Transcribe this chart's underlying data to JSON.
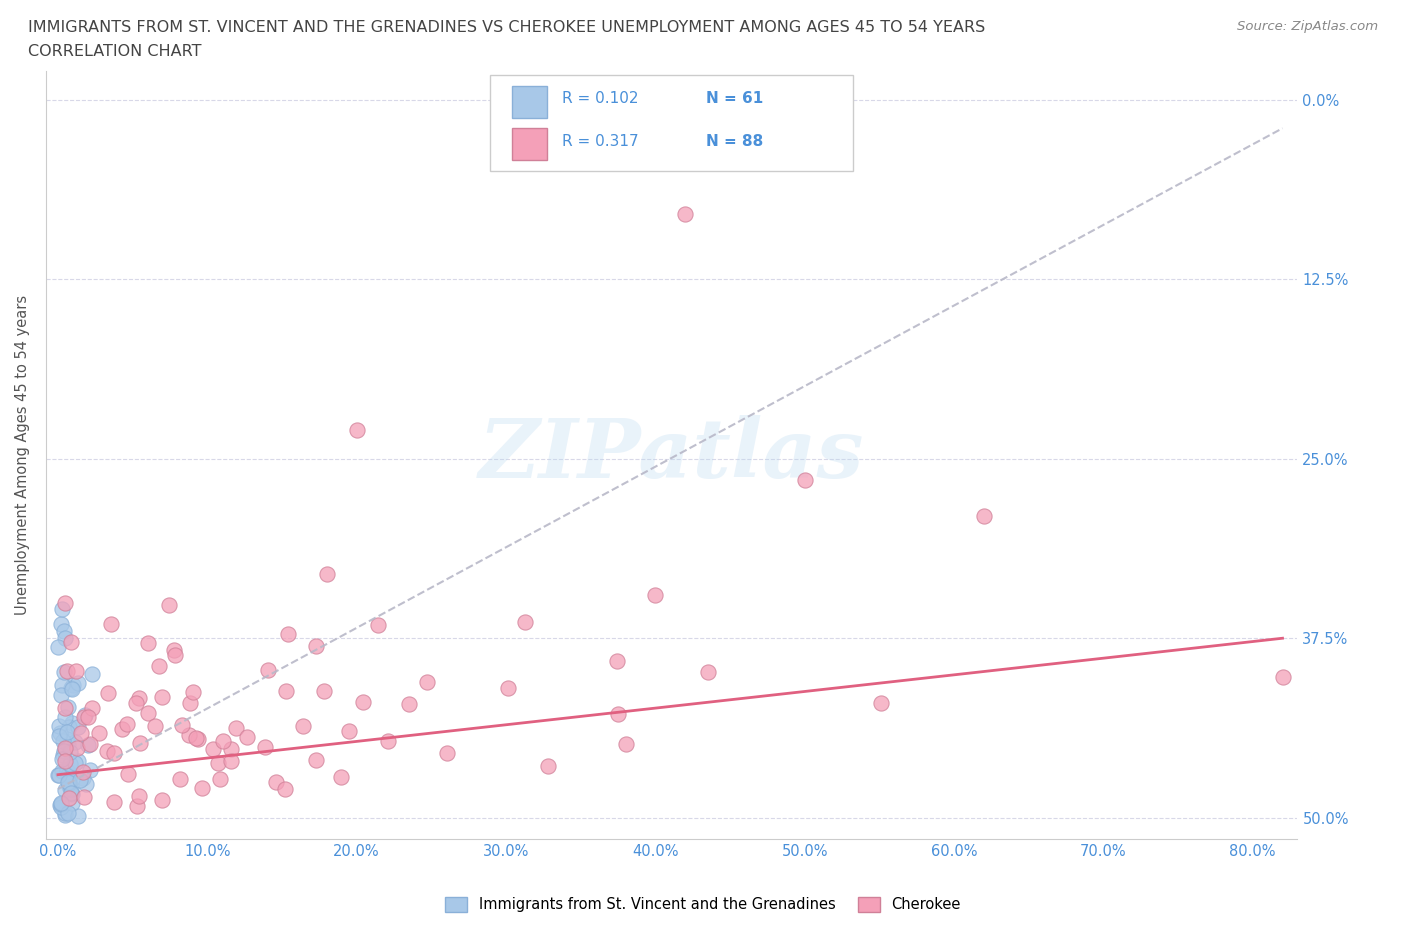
{
  "title_line1": "IMMIGRANTS FROM ST. VINCENT AND THE GRENADINES VS CHEROKEE UNEMPLOYMENT AMONG AGES 45 TO 54 YEARS",
  "title_line2": "CORRELATION CHART",
  "source": "Source: ZipAtlas.com",
  "xlabel_ticks": [
    "0.0%",
    "10.0%",
    "20.0%",
    "30.0%",
    "40.0%",
    "50.0%",
    "60.0%",
    "70.0%",
    "80.0%"
  ],
  "xlabel_vals": [
    0.0,
    0.1,
    0.2,
    0.3,
    0.4,
    0.5,
    0.6,
    0.7,
    0.8
  ],
  "ylabel": "Unemployment Among Ages 45 to 54 years",
  "ylabel_ticks_right": [
    "50.0%",
    "37.5%",
    "25.0%",
    "12.5%",
    "0.0%"
  ],
  "ylabel_vals": [
    0.0,
    0.125,
    0.25,
    0.375,
    0.5
  ],
  "xlim": [
    -0.008,
    0.83
  ],
  "ylim": [
    -0.015,
    0.52
  ],
  "legend_label1": "Immigrants from St. Vincent and the Grenadines",
  "legend_label2": "Cherokee",
  "R1": "0.102",
  "N1": "61",
  "R2": "0.317",
  "N2": "88",
  "color_blue": "#a8c8e8",
  "color_pink": "#f4a0b8",
  "trendline_blue_color": "#8ab0d8",
  "trendline_pink_color": "#e06080",
  "trendline_gray_color": "#b8b8c8",
  "text_color": "#4a90d9",
  "background_color": "#ffffff",
  "watermark": "ZIPatlas",
  "grid_color": "#d8d8e8"
}
